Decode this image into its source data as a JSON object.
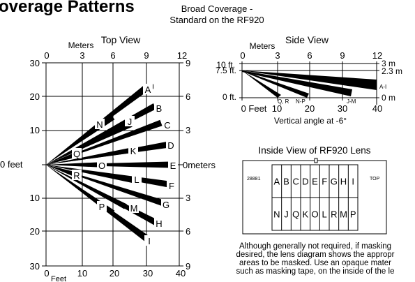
{
  "header": {
    "heading_partial": "overage Patterns",
    "subtitle_line1": "Broad Coverage -",
    "subtitle_line2": "Standard on the RF920"
  },
  "top_view": {
    "title": "Top View",
    "meters_label": "Meters",
    "meters_ticks": [
      "0",
      "3",
      "6",
      "9",
      "12"
    ],
    "feet_ticks": [
      "0",
      "10",
      "20",
      "30",
      "40"
    ],
    "feet_label": "Feet",
    "left_ticks": [
      "30",
      "20",
      "10",
      "0 feet",
      "10",
      "20",
      "30"
    ],
    "right_ticks": [
      "9",
      "6",
      "3",
      "0meters",
      "3",
      "6",
      "9"
    ],
    "zone_letters": [
      "A",
      "B",
      "C",
      "D",
      "E",
      "F",
      "G",
      "H",
      "I",
      "N",
      "J",
      "K",
      "Q",
      "O",
      "R",
      "L",
      "M",
      "P"
    ]
  },
  "side_view": {
    "title": "Side View",
    "meters_label": "Meters",
    "meters_ticks": [
      "0",
      "3",
      "6",
      "9",
      "12"
    ],
    "height_labels": [
      "10 ft.",
      "7.5 ft.",
      "0 ft."
    ],
    "right_labels": [
      "3 m",
      "2.3 m",
      "0 m"
    ],
    "zone_labels": [
      "A-I",
      "J-M",
      "N-P",
      "Q, R"
    ],
    "feet_ticks": [
      "0 Feet",
      "10",
      "20",
      "30",
      "40"
    ],
    "caption": "Vertical angle at -6°"
  },
  "lens": {
    "title": "Inside View of RF920 Lens",
    "part_number": "28881",
    "top_label": "TOP",
    "row1": [
      "A",
      "B",
      "C",
      "D",
      "E",
      "F",
      "G",
      "H",
      "I"
    ],
    "row2": [
      "N",
      "J",
      "Q",
      "K",
      "O",
      "L",
      "R",
      "M",
      "P"
    ]
  },
  "note": {
    "line1": "Although generally not required, if masking",
    "line2": "desired, the lens diagram shows the appropr",
    "line3": "areas to be masked.  Use an opaque mater",
    "line4": "such as masking tape, on the inside of the le"
  }
}
